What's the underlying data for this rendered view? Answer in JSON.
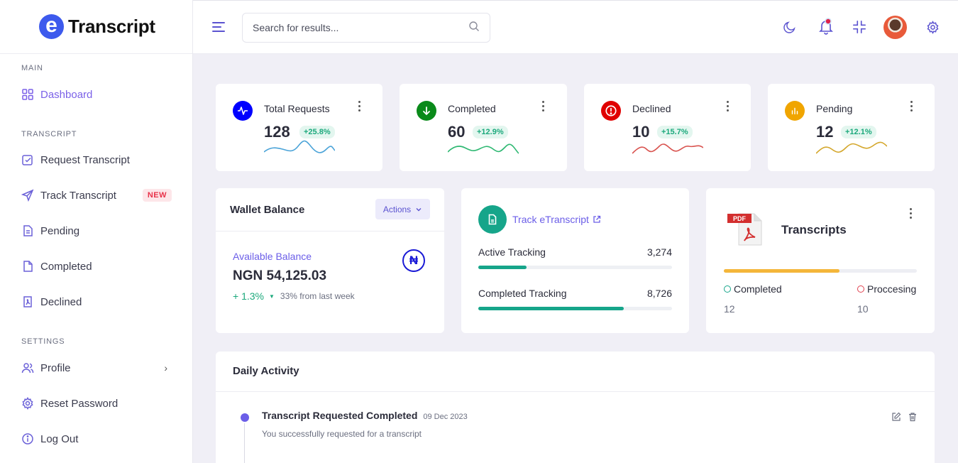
{
  "brand": {
    "logo_letter": "e",
    "name": "Transcript"
  },
  "sidebar": {
    "sections": [
      {
        "title": "MAIN"
      },
      {
        "title": "TRANSCRIPT"
      },
      {
        "title": "SETTINGS"
      }
    ],
    "items": [
      {
        "label": "Dashboard",
        "icon": "grid-icon"
      },
      {
        "label": "Request Transcript",
        "icon": "edit-square-icon"
      },
      {
        "label": "Track Transcript",
        "icon": "send-icon",
        "badge": "NEW"
      },
      {
        "label": "Pending",
        "icon": "document-icon"
      },
      {
        "label": "Completed",
        "icon": "file-icon"
      },
      {
        "label": "Declined",
        "icon": "pdf-file-icon"
      },
      {
        "label": "Profile",
        "icon": "users-icon",
        "chevron": "›"
      },
      {
        "label": "Reset Password",
        "icon": "gear-icon"
      },
      {
        "label": "Log Out",
        "icon": "info-icon"
      }
    ]
  },
  "header": {
    "search_placeholder": "Search for results..."
  },
  "stats": [
    {
      "label": "Total Requests",
      "value": "128",
      "change": "+25.8%",
      "color": "#0000ff",
      "line_color": "#4aa3d8"
    },
    {
      "label": "Completed",
      "value": "60",
      "change": "+12.9%",
      "color": "#0a8a1a",
      "line_color": "#2eb872"
    },
    {
      "label": "Declined",
      "value": "10",
      "change": "+15.7%",
      "color": "#e00000",
      "line_color": "#d9534f"
    },
    {
      "label": "Pending",
      "value": "12",
      "change": "+12.1%",
      "color": "#f0a500",
      "line_color": "#d4a72c"
    }
  ],
  "wallet": {
    "title": "Wallet Balance",
    "actions_label": "Actions",
    "available_label": "Available Balance",
    "amount": "NGN 54,125.03",
    "change": "+ 1.3%",
    "change_note": "33% from last week",
    "currency_symbol": "₦"
  },
  "tracking": {
    "title": "Track eTranscript",
    "rows": [
      {
        "label": "Active Tracking",
        "value": "3,274",
        "progress": 0.25
      },
      {
        "label": "Completed Tracking",
        "value": "8,726",
        "progress": 0.75
      }
    ],
    "accent": "#16a58a"
  },
  "transcripts": {
    "title": "Transcripts",
    "pdf_label": "PDF",
    "progress": 0.6,
    "legend": [
      {
        "label": "Completed",
        "value": "12",
        "color": "#16a58a"
      },
      {
        "label": "Proccesing",
        "value": "10",
        "color": "#e0414f"
      }
    ]
  },
  "activity": {
    "title": "Daily Activity",
    "items": [
      {
        "title": "Transcript Requested Completed",
        "date": "09 Dec 2023",
        "description": "You successfully requested for a transcript"
      }
    ]
  }
}
